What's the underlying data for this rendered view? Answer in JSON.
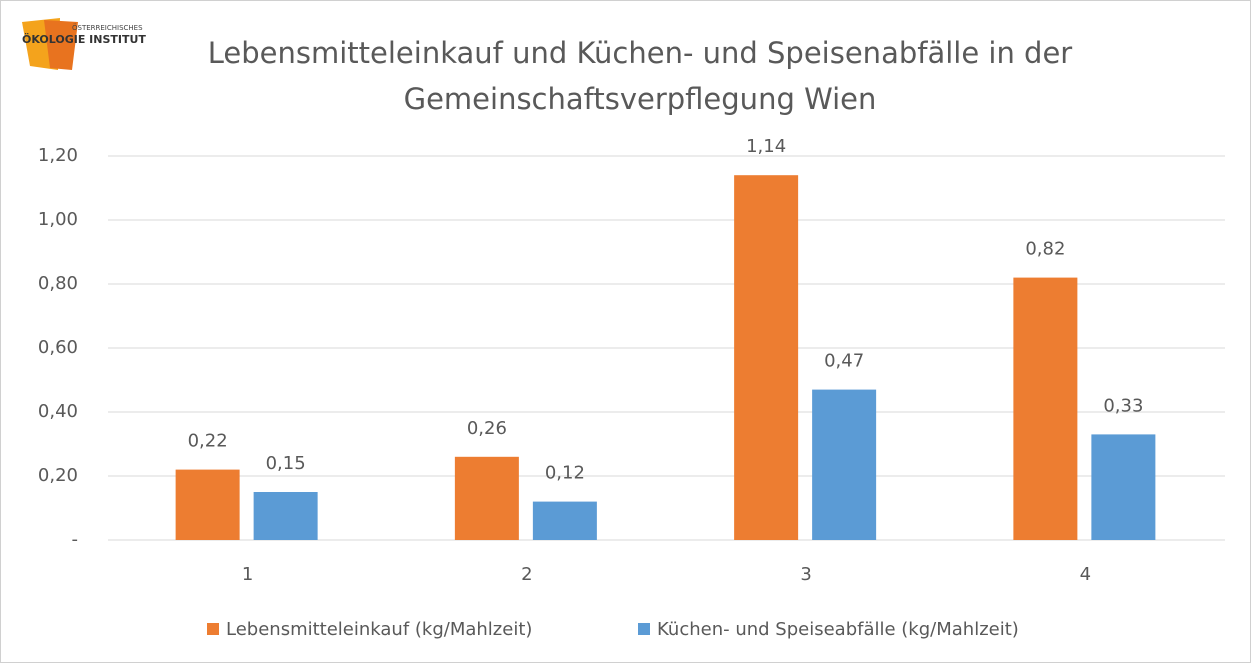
{
  "logo": {
    "line1": "ÖSTERREICHISCHES",
    "line2": "ÖKOLOGIE INSTITUT"
  },
  "chart_data": {
    "type": "bar",
    "title": [
      "Lebensmitteleinkauf und Küchen- und Speisenabfälle in der",
      "Gemeinschaftsverpflegung Wien"
    ],
    "categories": [
      "1",
      "2",
      "3",
      "4"
    ],
    "series": [
      {
        "name": "Lebensmitteleinkauf (kg/Mahlzeit)",
        "color": "#ed7d31",
        "values": [
          0.22,
          0.26,
          1.14,
          0.82
        ],
        "value_labels": [
          "0,22",
          "0,26",
          "1,14",
          "0,82"
        ]
      },
      {
        "name": "Küchen- und Speiseabfälle (kg/Mahlzeit)",
        "color": "#5b9bd5",
        "values": [
          0.15,
          0.12,
          0.47,
          0.33
        ],
        "value_labels": [
          "0,15",
          "0,12",
          "0,47",
          "0,33"
        ]
      }
    ],
    "ylim": [
      0,
      1.2
    ],
    "yticks": [
      {
        "value": 0,
        "label": "-"
      },
      {
        "value": 0.2,
        "label": "0,20"
      },
      {
        "value": 0.4,
        "label": "0,40"
      },
      {
        "value": 0.6,
        "label": "0,60"
      },
      {
        "value": 0.8,
        "label": "0,80"
      },
      {
        "value": 1.0,
        "label": "1,00"
      },
      {
        "value": 1.2,
        "label": "1,20"
      }
    ],
    "grid": true,
    "legend": "bottom"
  }
}
